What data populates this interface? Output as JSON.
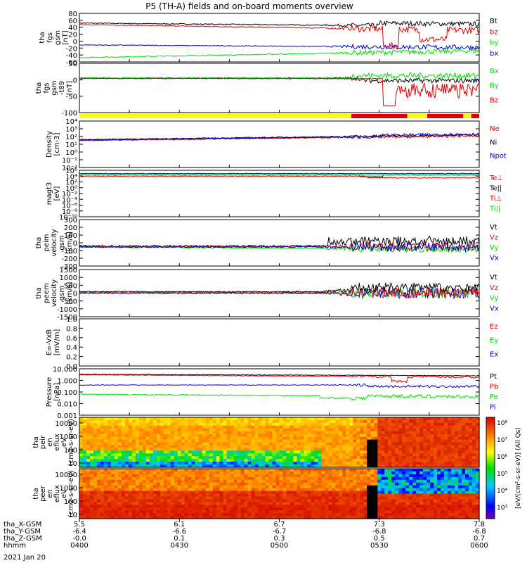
{
  "title": "P5 (TH-A) fields and on-board moments overview",
  "date": "2021 Jan 20",
  "x_ticks": [
    "5.5",
    "6.1",
    "6.7",
    "7.3",
    "7.8"
  ],
  "orbit_rows": [
    {
      "label": "tha_X-GSM",
      "values": [
        "5.5",
        "6.1",
        "6.7",
        "7.3",
        "7.8"
      ]
    },
    {
      "label": "tha_Y-GSM",
      "values": [
        "-6.4",
        "-6.6",
        "-6.7",
        "-6.8",
        "-6.8"
      ]
    },
    {
      "label": "tha_Z-GSM",
      "values": [
        "-0.0",
        "0.1",
        "0.3",
        "0.5",
        "0.7"
      ]
    },
    {
      "label": "hhmm",
      "values": [
        "0400",
        "0430",
        "0500",
        "0530",
        "0600"
      ]
    }
  ],
  "colors": {
    "black": "#000000",
    "red": "#e00000",
    "green": "#00dd00",
    "blue": "#0000cc",
    "yellow": "#ffff00"
  },
  "spectro_colorbar": {
    "ticks": [
      "10⁸",
      "10⁷",
      "10⁶",
      "10⁵",
      "10⁴",
      "10³"
    ],
    "label": "[eV/(cm²-s-sr-eV)] (All Qs)"
  },
  "chart_data": [
    {
      "type": "line",
      "name": "fgs_gsm",
      "ylabel": "tha fgs gsm [nT]",
      "ylim": [
        -60,
        90
      ],
      "ticks": [
        "80",
        "60",
        "40",
        "20",
        "0",
        "-20",
        "-40",
        "-60"
      ],
      "series": [
        {
          "name": "Bt",
          "color": "black"
        },
        {
          "name": "bz",
          "color": "red"
        },
        {
          "name": "by",
          "color": "green"
        },
        {
          "name": "bx",
          "color": "blue"
        }
      ]
    },
    {
      "type": "line",
      "name": "fgs_gsm_t89",
      "ylabel": "tha fgs gsm -t89 [nT]",
      "ylim": [
        -120,
        50
      ],
      "ticks": [
        "50",
        "0",
        "-50",
        "-100"
      ],
      "series": [
        {
          "name": "Bx",
          "color": "green"
        },
        {
          "name": "By",
          "color": "green"
        },
        {
          "name": "Bz",
          "color": "red"
        }
      ]
    },
    {
      "type": "line",
      "name": "density",
      "ylabel": "Density [cm-3]",
      "log": true,
      "ticks": [
        "10⁴",
        "10³",
        "10²",
        "10¹",
        "10⁰",
        "10⁻¹",
        "10⁻²"
      ],
      "series": [
        {
          "name": "Ne",
          "color": "red"
        },
        {
          "name": "Ni",
          "color": "black"
        },
        {
          "name": "Npot",
          "color": "blue"
        }
      ]
    },
    {
      "type": "line",
      "name": "temperature",
      "ylabel": "magt3 [eV]",
      "log": true,
      "ticks": [
        "10⁶",
        "10⁴",
        "10²",
        "10⁰",
        "10⁻²",
        "10⁻⁴",
        "10⁻⁶",
        "10⁻⁸",
        "10⁻¹⁰"
      ],
      "series": [
        {
          "name": "Te⊥",
          "color": "red"
        },
        {
          "name": "Te||",
          "color": "black"
        },
        {
          "name": "Ti⊥",
          "color": "red"
        },
        {
          "name": "Ti||",
          "color": "green"
        }
      ]
    },
    {
      "type": "line",
      "name": "peim_velocity",
      "ylabel": "tha peim velocity gsm [km/s]",
      "ylim": [
        -300,
        300
      ],
      "ticks": [
        "300",
        "200",
        "100",
        "0",
        "-100",
        "-200",
        "-300"
      ],
      "series": [
        {
          "name": "Vt",
          "color": "black"
        },
        {
          "name": "Vz",
          "color": "red"
        },
        {
          "name": "Vy",
          "color": "green"
        },
        {
          "name": "Vx",
          "color": "blue"
        }
      ]
    },
    {
      "type": "line",
      "name": "peem_velocity",
      "ylabel": "tha peem velocity gsm [km/s]",
      "ylim": [
        -1500,
        1500
      ],
      "ticks": [
        "1500",
        "1000",
        "500",
        "0",
        "-500",
        "-1000",
        "-1500"
      ],
      "series": [
        {
          "name": "Vt",
          "color": "black"
        },
        {
          "name": "Vz",
          "color": "red"
        },
        {
          "name": "Vy",
          "color": "green"
        },
        {
          "name": "Vx",
          "color": "blue"
        }
      ]
    },
    {
      "type": "line",
      "name": "efield",
      "ylabel": "E=-VxB [mV/m]",
      "ylim": [
        0,
        1
      ],
      "ticks": [
        "1.0",
        "0.8",
        "0.6",
        "0.4",
        "0.2",
        "0.0"
      ],
      "series": [
        {
          "name": "Ez",
          "color": "red"
        },
        {
          "name": "Ey",
          "color": "green"
        },
        {
          "name": "Ex",
          "color": "blue"
        }
      ]
    },
    {
      "type": "line",
      "name": "pressure",
      "ylabel": "Pressure [nPa]",
      "log": true,
      "ticks": [
        "10.000",
        "1.000",
        "0.100",
        "0.010",
        "0.001"
      ],
      "series": [
        {
          "name": "Pt",
          "color": "black"
        },
        {
          "name": "Pb",
          "color": "red"
        },
        {
          "name": "Pe",
          "color": "green"
        },
        {
          "name": "Pi",
          "color": "blue"
        }
      ]
    },
    {
      "type": "heatmap",
      "name": "peir_spectrogram",
      "ylabel": "tha peir en eflux eV (cm2-s-sr-eV)",
      "ticks": [
        "10000",
        "1000",
        "100",
        "10"
      ]
    },
    {
      "type": "heatmap",
      "name": "peer_spectrogram",
      "ylabel": "tha peer en eflux eV (cm2-s-sr-eV)",
      "ticks": [
        "10000",
        "1000",
        "100",
        "10"
      ]
    }
  ]
}
